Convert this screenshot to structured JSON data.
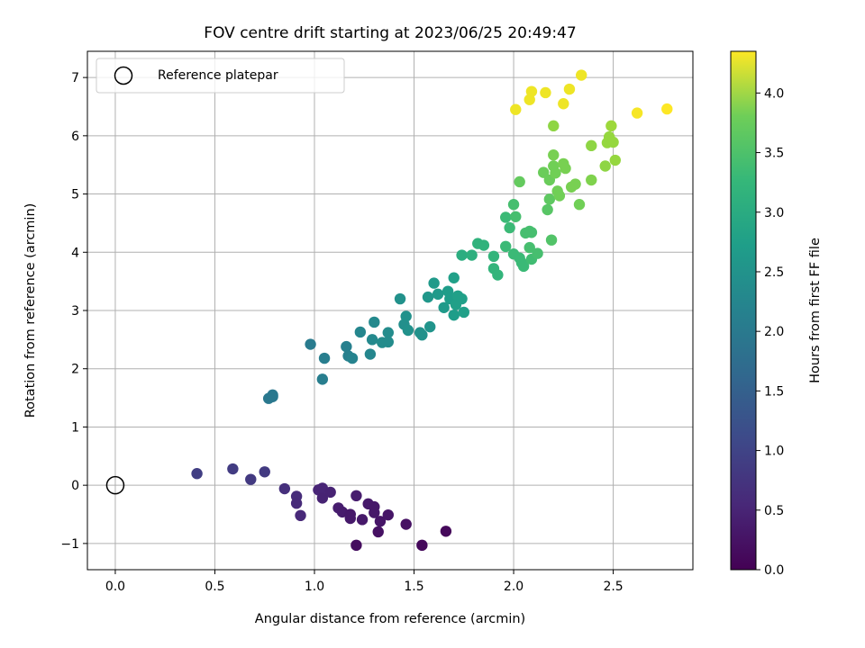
{
  "chart_data": {
    "type": "scatter",
    "title": "FOV centre drift starting at 2023/06/25 20:49:47",
    "xlabel": "Angular distance from reference (arcmin)",
    "ylabel": "Rotation from reference (arcmin)",
    "xlim": [
      -0.14,
      2.9
    ],
    "ylim": [
      -1.45,
      7.45
    ],
    "x_ticks": [
      0.0,
      0.5,
      1.0,
      1.5,
      2.0,
      2.5
    ],
    "x_tick_labels": [
      "0.0",
      "0.5",
      "1.0",
      "1.5",
      "2.0",
      "2.5"
    ],
    "y_ticks": [
      -1,
      0,
      1,
      2,
      3,
      4,
      5,
      6,
      7
    ],
    "y_tick_labels": [
      "−1",
      "0",
      "1",
      "2",
      "3",
      "4",
      "5",
      "6",
      "7"
    ],
    "grid": true,
    "legend": {
      "position": "top-left",
      "entries": [
        "Reference platepar"
      ]
    },
    "reference_point": {
      "x": 0.0,
      "y": 0.0
    },
    "colorbar": {
      "label": "Hours from first FF file",
      "range": [
        0.0,
        4.35
      ],
      "ticks": [
        0.0,
        0.5,
        1.0,
        1.5,
        2.0,
        2.5,
        3.0,
        3.5,
        4.0
      ],
      "tick_labels": [
        "0.0",
        "0.5",
        "1.0",
        "1.5",
        "2.0",
        "2.5",
        "3.0",
        "3.5",
        "4.0"
      ],
      "colormap": "viridis"
    },
    "points": [
      {
        "x": 0.41,
        "y": 0.2,
        "h": 0.8
      },
      {
        "x": 0.59,
        "y": 0.28,
        "h": 0.78
      },
      {
        "x": 0.75,
        "y": 0.23,
        "h": 0.75
      },
      {
        "x": 0.68,
        "y": 0.1,
        "h": 0.74
      },
      {
        "x": 0.85,
        "y": -0.06,
        "h": 0.6
      },
      {
        "x": 0.91,
        "y": -0.19,
        "h": 0.55
      },
      {
        "x": 0.91,
        "y": -0.31,
        "h": 0.52
      },
      {
        "x": 0.93,
        "y": -0.52,
        "h": 0.5
      },
      {
        "x": 1.02,
        "y": -0.08,
        "h": 0.45
      },
      {
        "x": 1.04,
        "y": -0.05,
        "h": 0.45
      },
      {
        "x": 1.04,
        "y": -0.22,
        "h": 0.42
      },
      {
        "x": 1.08,
        "y": -0.12,
        "h": 0.42
      },
      {
        "x": 1.12,
        "y": -0.39,
        "h": 0.35
      },
      {
        "x": 1.14,
        "y": -0.46,
        "h": 0.33
      },
      {
        "x": 1.18,
        "y": -0.57,
        "h": 0.3
      },
      {
        "x": 1.18,
        "y": -0.5,
        "h": 0.3
      },
      {
        "x": 1.21,
        "y": -0.18,
        "h": 0.35
      },
      {
        "x": 1.24,
        "y": -0.59,
        "h": 0.3
      },
      {
        "x": 1.27,
        "y": -0.32,
        "h": 0.3
      },
      {
        "x": 1.3,
        "y": -0.37,
        "h": 0.28
      },
      {
        "x": 1.3,
        "y": -0.47,
        "h": 0.28
      },
      {
        "x": 1.33,
        "y": -0.62,
        "h": 0.25
      },
      {
        "x": 1.37,
        "y": -0.51,
        "h": 0.25
      },
      {
        "x": 1.32,
        "y": -0.8,
        "h": 0.2
      },
      {
        "x": 1.21,
        "y": -1.03,
        "h": 0.15
      },
      {
        "x": 1.46,
        "y": -0.67,
        "h": 0.2
      },
      {
        "x": 1.54,
        "y": -1.03,
        "h": 0.1
      },
      {
        "x": 1.66,
        "y": -0.79,
        "h": 0.1
      },
      {
        "x": 0.77,
        "y": 1.49,
        "h": 1.75
      },
      {
        "x": 0.79,
        "y": 1.52,
        "h": 1.75
      },
      {
        "x": 0.79,
        "y": 1.55,
        "h": 1.75
      },
      {
        "x": 0.98,
        "y": 2.42,
        "h": 1.8
      },
      {
        "x": 1.05,
        "y": 2.18,
        "h": 1.85
      },
      {
        "x": 1.04,
        "y": 1.82,
        "h": 1.85
      },
      {
        "x": 1.16,
        "y": 2.38,
        "h": 1.9
      },
      {
        "x": 1.17,
        "y": 2.22,
        "h": 1.9
      },
      {
        "x": 1.19,
        "y": 2.18,
        "h": 1.95
      },
      {
        "x": 1.23,
        "y": 2.63,
        "h": 2.0
      },
      {
        "x": 1.28,
        "y": 2.25,
        "h": 2.0
      },
      {
        "x": 1.29,
        "y": 2.5,
        "h": 2.05
      },
      {
        "x": 1.3,
        "y": 2.8,
        "h": 2.05
      },
      {
        "x": 1.34,
        "y": 2.45,
        "h": 2.1
      },
      {
        "x": 1.37,
        "y": 2.46,
        "h": 2.1
      },
      {
        "x": 1.37,
        "y": 2.62,
        "h": 2.1
      },
      {
        "x": 1.43,
        "y": 3.2,
        "h": 2.2
      },
      {
        "x": 1.45,
        "y": 2.76,
        "h": 2.15
      },
      {
        "x": 1.46,
        "y": 2.9,
        "h": 2.2
      },
      {
        "x": 1.47,
        "y": 2.66,
        "h": 2.2
      },
      {
        "x": 1.53,
        "y": 2.62,
        "h": 2.2
      },
      {
        "x": 1.54,
        "y": 2.58,
        "h": 2.2
      },
      {
        "x": 1.57,
        "y": 3.23,
        "h": 2.3
      },
      {
        "x": 1.58,
        "y": 2.72,
        "h": 2.25
      },
      {
        "x": 1.6,
        "y": 3.47,
        "h": 2.35
      },
      {
        "x": 1.62,
        "y": 3.28,
        "h": 2.35
      },
      {
        "x": 1.65,
        "y": 3.05,
        "h": 2.35
      },
      {
        "x": 1.67,
        "y": 3.33,
        "h": 2.4
      },
      {
        "x": 1.68,
        "y": 3.2,
        "h": 2.4
      },
      {
        "x": 1.7,
        "y": 2.92,
        "h": 2.4
      },
      {
        "x": 1.7,
        "y": 3.56,
        "h": 2.45
      },
      {
        "x": 1.71,
        "y": 3.1,
        "h": 2.45
      },
      {
        "x": 1.72,
        "y": 3.25,
        "h": 2.45
      },
      {
        "x": 1.74,
        "y": 3.2,
        "h": 2.45
      },
      {
        "x": 1.75,
        "y": 2.97,
        "h": 2.45
      },
      {
        "x": 1.74,
        "y": 3.95,
        "h": 2.7
      },
      {
        "x": 1.79,
        "y": 3.95,
        "h": 2.75
      },
      {
        "x": 1.82,
        "y": 4.15,
        "h": 2.8
      },
      {
        "x": 1.85,
        "y": 4.12,
        "h": 2.8
      },
      {
        "x": 1.9,
        "y": 3.93,
        "h": 2.85
      },
      {
        "x": 1.9,
        "y": 3.72,
        "h": 2.85
      },
      {
        "x": 1.92,
        "y": 3.61,
        "h": 2.85
      },
      {
        "x": 1.96,
        "y": 4.6,
        "h": 2.95
      },
      {
        "x": 1.96,
        "y": 4.1,
        "h": 2.95
      },
      {
        "x": 1.98,
        "y": 4.42,
        "h": 2.95
      },
      {
        "x": 2.0,
        "y": 3.97,
        "h": 2.95
      },
      {
        "x": 2.0,
        "y": 4.82,
        "h": 3.05
      },
      {
        "x": 2.01,
        "y": 4.61,
        "h": 3.05
      },
      {
        "x": 2.03,
        "y": 3.9,
        "h": 2.95
      },
      {
        "x": 2.04,
        "y": 3.82,
        "h": 2.95
      },
      {
        "x": 2.05,
        "y": 3.76,
        "h": 2.95
      },
      {
        "x": 2.06,
        "y": 4.33,
        "h": 3.05
      },
      {
        "x": 2.08,
        "y": 4.36,
        "h": 3.05
      },
      {
        "x": 2.09,
        "y": 4.34,
        "h": 3.05
      },
      {
        "x": 2.08,
        "y": 4.08,
        "h": 3.05
      },
      {
        "x": 2.09,
        "y": 3.88,
        "h": 3.0
      },
      {
        "x": 2.12,
        "y": 3.98,
        "h": 3.05
      },
      {
        "x": 2.03,
        "y": 5.21,
        "h": 3.3
      },
      {
        "x": 2.17,
        "y": 4.73,
        "h": 3.2
      },
      {
        "x": 2.18,
        "y": 4.91,
        "h": 3.25
      },
      {
        "x": 2.19,
        "y": 4.21,
        "h": 3.15
      },
      {
        "x": 2.15,
        "y": 5.37,
        "h": 3.35
      },
      {
        "x": 2.18,
        "y": 5.24,
        "h": 3.35
      },
      {
        "x": 2.2,
        "y": 5.48,
        "h": 3.4
      },
      {
        "x": 2.2,
        "y": 5.67,
        "h": 3.45
      },
      {
        "x": 2.21,
        "y": 5.36,
        "h": 3.4
      },
      {
        "x": 2.22,
        "y": 5.05,
        "h": 3.4
      },
      {
        "x": 2.23,
        "y": 4.97,
        "h": 3.4
      },
      {
        "x": 2.25,
        "y": 5.52,
        "h": 3.45
      },
      {
        "x": 2.26,
        "y": 5.44,
        "h": 3.45
      },
      {
        "x": 2.29,
        "y": 5.12,
        "h": 3.45
      },
      {
        "x": 2.31,
        "y": 5.17,
        "h": 3.45
      },
      {
        "x": 2.33,
        "y": 4.82,
        "h": 3.4
      },
      {
        "x": 2.2,
        "y": 6.17,
        "h": 3.6
      },
      {
        "x": 2.39,
        "y": 5.24,
        "h": 3.5
      },
      {
        "x": 2.39,
        "y": 5.83,
        "h": 3.6
      },
      {
        "x": 2.46,
        "y": 5.48,
        "h": 3.6
      },
      {
        "x": 2.47,
        "y": 5.88,
        "h": 3.65
      },
      {
        "x": 2.48,
        "y": 5.98,
        "h": 3.65
      },
      {
        "x": 2.5,
        "y": 5.89,
        "h": 3.65
      },
      {
        "x": 2.49,
        "y": 6.17,
        "h": 3.7
      },
      {
        "x": 2.51,
        "y": 5.58,
        "h": 3.65
      },
      {
        "x": 2.01,
        "y": 6.45,
        "h": 4.25
      },
      {
        "x": 2.08,
        "y": 6.62,
        "h": 4.25
      },
      {
        "x": 2.09,
        "y": 6.76,
        "h": 4.25
      },
      {
        "x": 2.16,
        "y": 6.74,
        "h": 4.25
      },
      {
        "x": 2.25,
        "y": 6.55,
        "h": 4.25
      },
      {
        "x": 2.28,
        "y": 6.8,
        "h": 4.25
      },
      {
        "x": 2.34,
        "y": 7.04,
        "h": 4.25
      },
      {
        "x": 2.62,
        "y": 6.39,
        "h": 4.3
      },
      {
        "x": 2.77,
        "y": 6.46,
        "h": 4.35
      }
    ]
  }
}
